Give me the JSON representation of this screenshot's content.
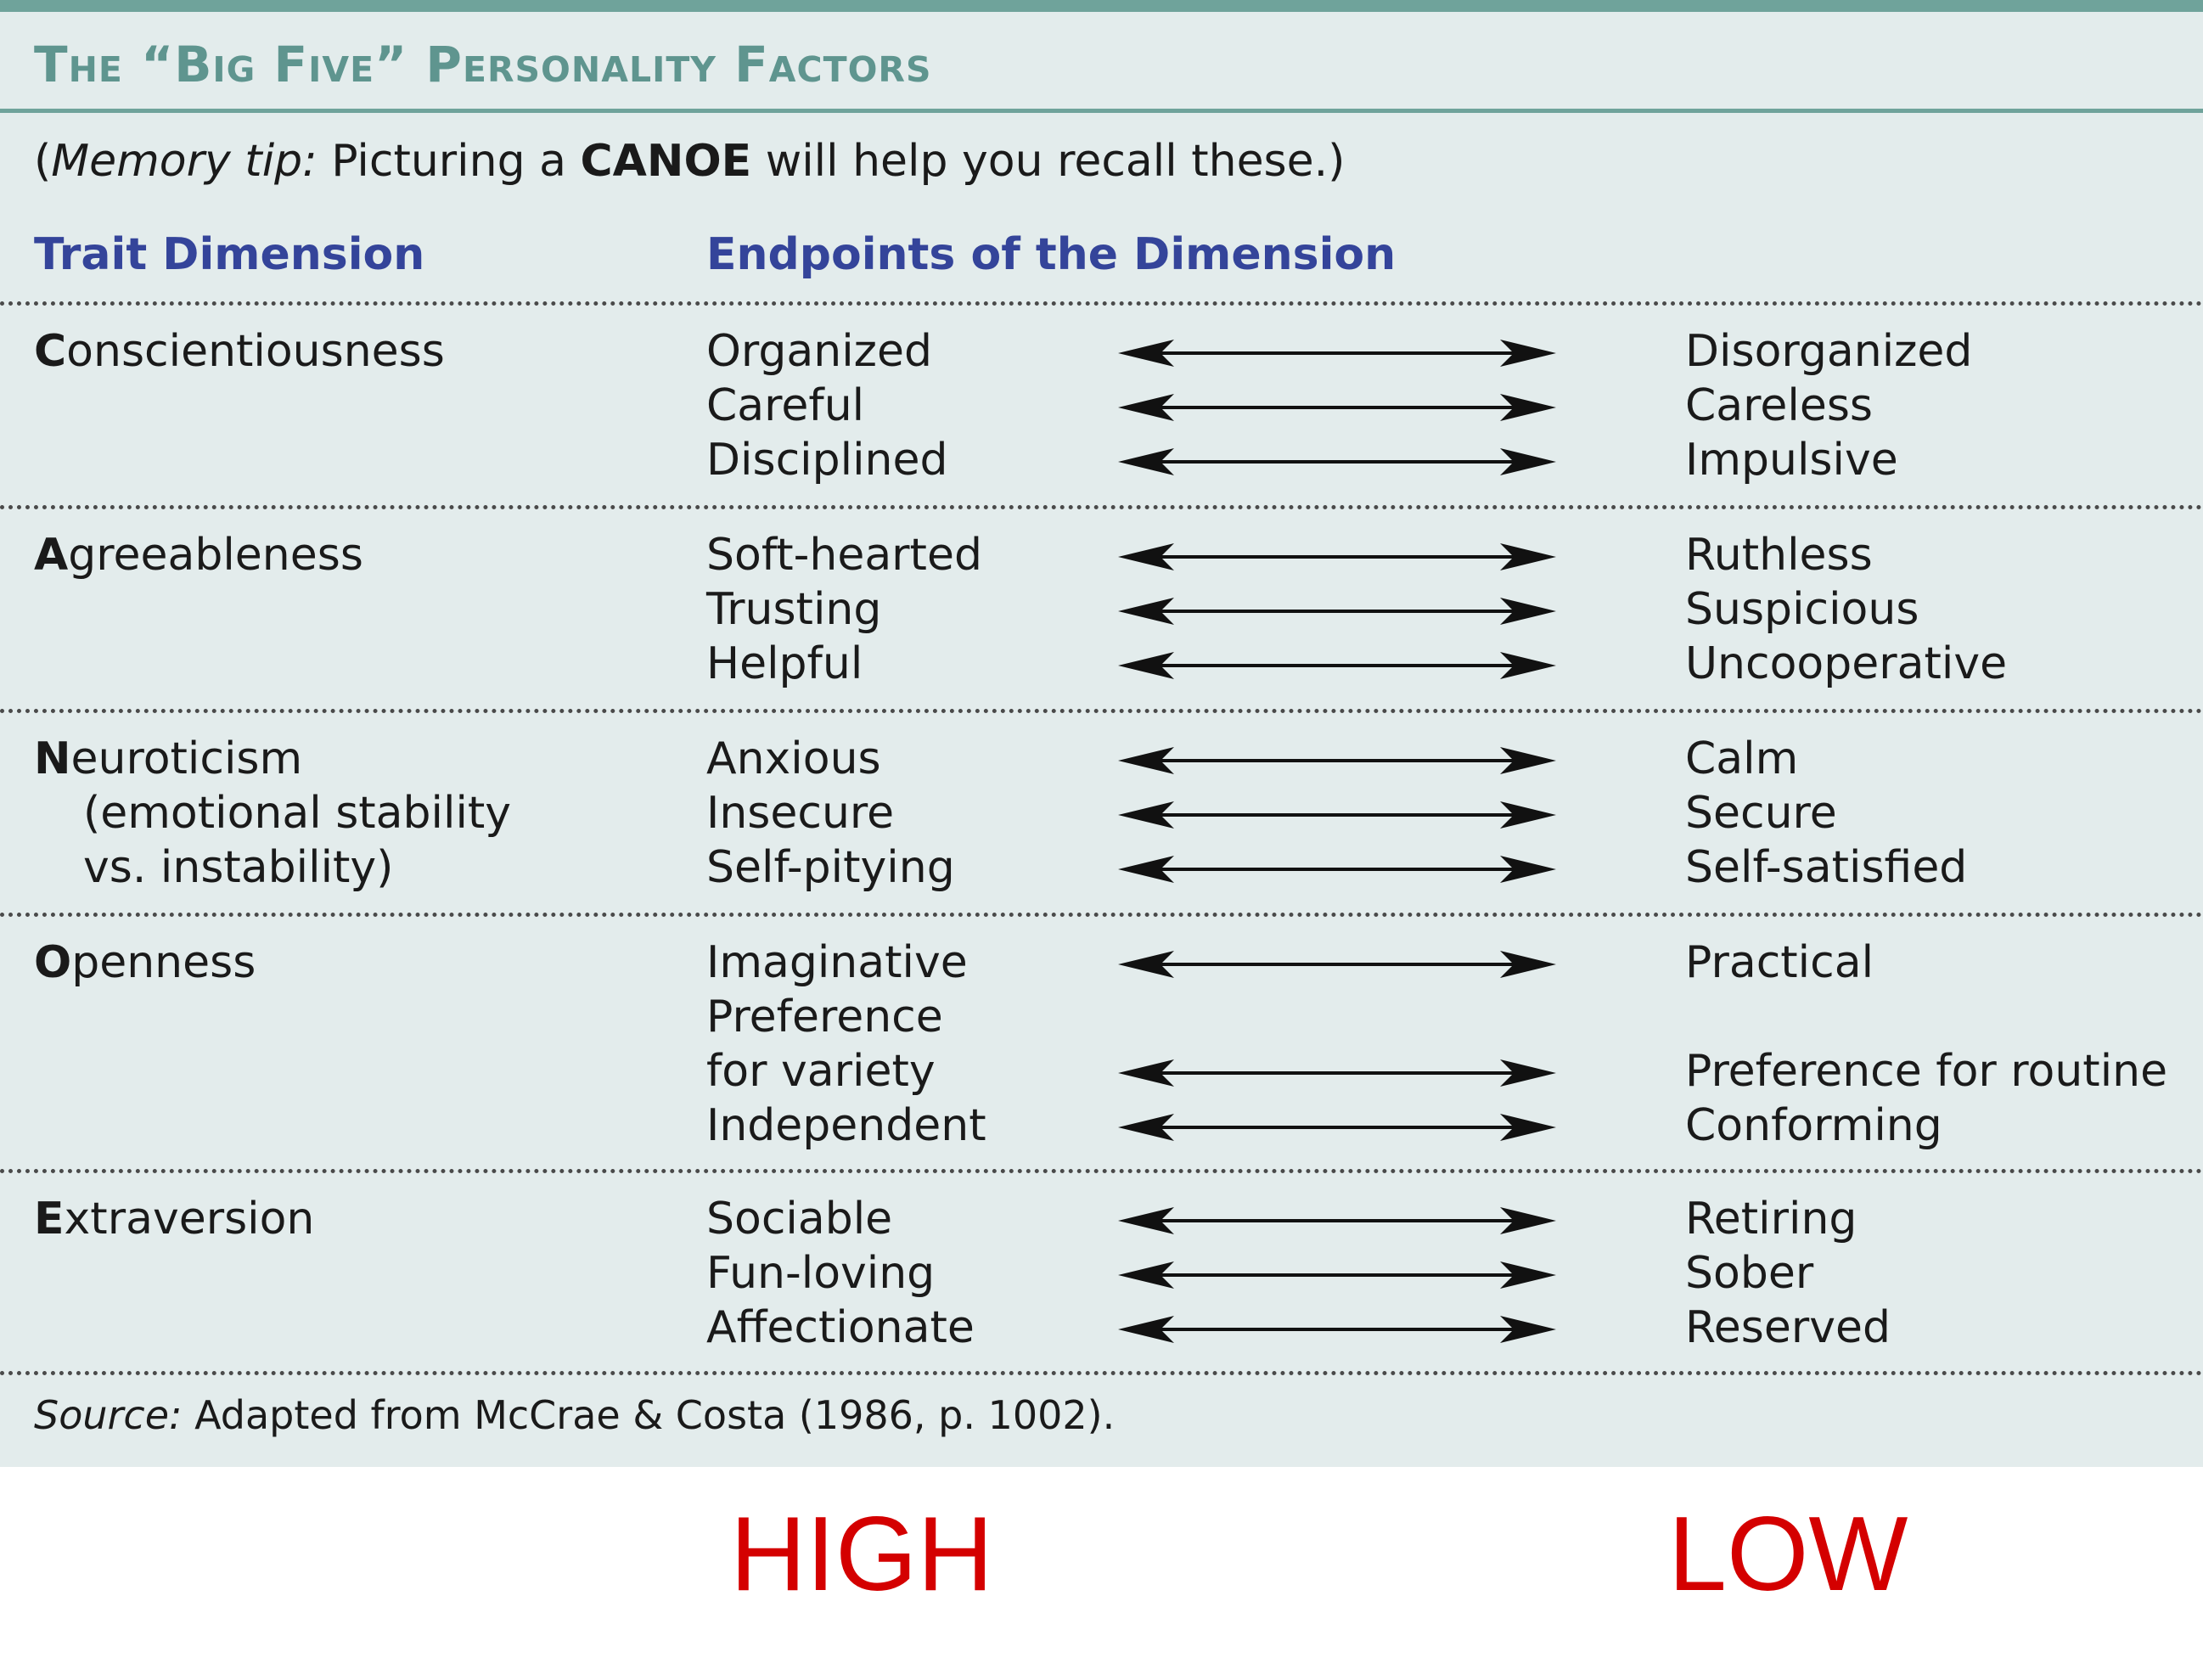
{
  "title": "The “Big Five” Personality Factors",
  "memory_tip": {
    "open_paren": "(",
    "label": "Memory tip:",
    "text_before": " Picturing a ",
    "keyword": "CANOE",
    "text_after": " will help you recall these.)"
  },
  "headers": {
    "trait": "Trait Dimension",
    "endpoints": "Endpoints of the Dimension"
  },
  "rows": [
    {
      "initial": "C",
      "rest": "onscientiousness",
      "subtitle": [],
      "pairs": [
        {
          "high": "Organized",
          "low": "Disorganized"
        },
        {
          "high": "Careful",
          "low": "Careless"
        },
        {
          "high": "Disciplined",
          "low": "Impulsive"
        }
      ]
    },
    {
      "initial": "A",
      "rest": "greeableness",
      "subtitle": [],
      "pairs": [
        {
          "high": "Soft-hearted",
          "low": "Ruthless"
        },
        {
          "high": "Trusting",
          "low": "Suspicious"
        },
        {
          "high": "Helpful",
          "low": "Uncooperative"
        }
      ]
    },
    {
      "initial": "N",
      "rest": "euroticism",
      "subtitle": [
        "(emotional stability",
        "vs. instability)"
      ],
      "pairs": [
        {
          "high": "Anxious",
          "low": "Calm"
        },
        {
          "high": "Insecure",
          "low": "Secure"
        },
        {
          "high": "Self-pitying",
          "low": "Self-satisfied"
        }
      ]
    },
    {
      "initial": "O",
      "rest": "penness",
      "subtitle": [],
      "pairs": [
        {
          "high": "Imaginative",
          "low": "Practical"
        },
        {
          "high": "Preference",
          "low": ""
        },
        {
          "high": "for variety",
          "low": "Preference for routine"
        },
        {
          "high": "Independent",
          "low": "Conforming"
        }
      ]
    },
    {
      "initial": "E",
      "rest": "xtraversion",
      "subtitle": [],
      "pairs": [
        {
          "high": "Sociable",
          "low": "Retiring"
        },
        {
          "high": "Fun-loving",
          "low": "Sober"
        },
        {
          "high": "Affectionate",
          "low": "Reserved"
        }
      ]
    }
  ],
  "source": {
    "label": "Source:",
    "text": " Adapted from McCrae & Costa (1986, p. 1002)."
  },
  "axis_labels": {
    "high": "HIGH",
    "low": "LOW"
  }
}
